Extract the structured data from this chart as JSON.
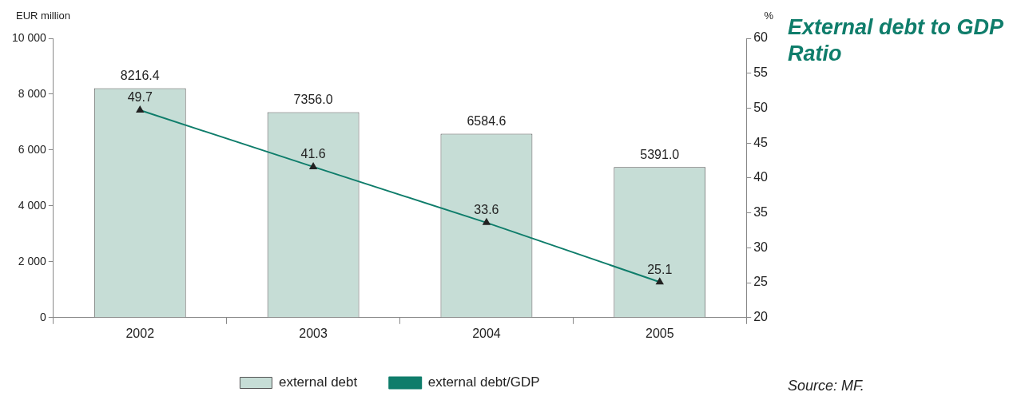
{
  "chart_data": {
    "type": "bar",
    "title": "External debt to GDP Ratio",
    "ylabel": "EUR million",
    "y2label": "%",
    "categories": [
      "2002",
      "2003",
      "2004",
      "2005"
    ],
    "series": [
      {
        "name": "external debt",
        "color": "#c6ddd6",
        "values": [
          8216.4,
          7356.0,
          6584.6,
          5391.0
        ],
        "value_labels": [
          "8216.4",
          "7356.0",
          "6584.6",
          "5391.0"
        ]
      },
      {
        "name": "external debt/GDP",
        "type": "line",
        "axis": "y2",
        "color": "#0f7d6b",
        "marker": "triangle",
        "values": [
          49.7,
          41.6,
          33.6,
          25.1
        ],
        "value_labels": [
          "49.7",
          "41.6",
          "33.6",
          "25.1"
        ]
      }
    ],
    "ylim": [
      0,
      10000
    ],
    "yticks": [
      0,
      {
        "value": 2000,
        "label": "2 000"
      },
      {
        "value": 4000,
        "label": "4 000"
      },
      {
        "value": 6000,
        "label": "6 000"
      },
      {
        "value": 8000,
        "label": "8 000"
      },
      {
        "value": 10000,
        "label": "10 000"
      }
    ],
    "y2lim": [
      20,
      60
    ],
    "y2ticks": [
      20,
      25,
      30,
      35,
      40,
      45,
      50,
      55,
      60
    ],
    "grid": false,
    "legend": "bottom",
    "annotations": [
      "Source: MF."
    ]
  }
}
